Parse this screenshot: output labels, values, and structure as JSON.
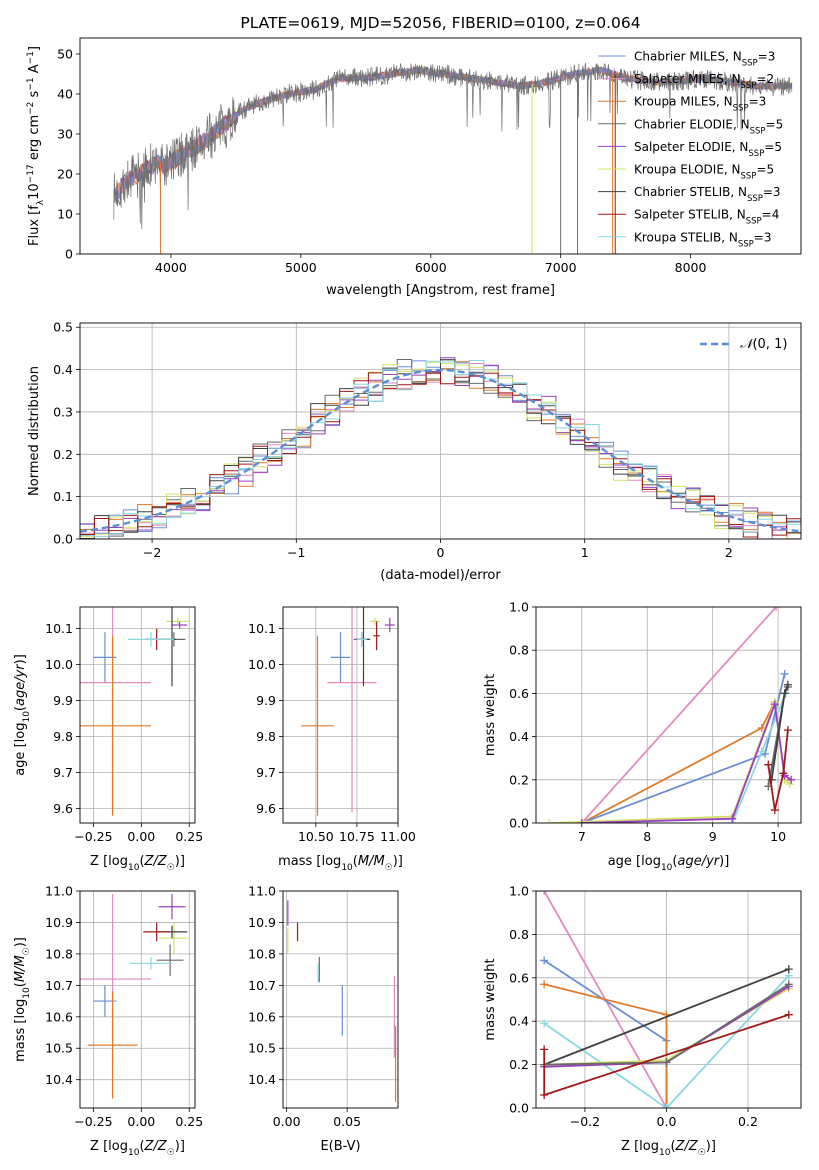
{
  "colors": {
    "chabrier_miles": "#6a8ed6",
    "salpeter_miles": "#e28bc0",
    "kroupa_miles": "#e07a2a",
    "chabrier_elodie": "#6a6a6a",
    "salpeter_elodie": "#9a3fc0",
    "kroupa_elodie": "#d2e06a",
    "chabrier_stelib": "#404040",
    "salpeter_stelib": "#a01818",
    "kroupa_stelib": "#88d8e0",
    "gaussian": "#5a8fd6",
    "grid": "#b0b0b0"
  },
  "chart_data": [
    {
      "id": "spectrum",
      "type": "line",
      "title": "PLATE=0619, MJD=52056, FIBERID=0100, z=0.064",
      "xlabel": "wavelength [Angstrom, rest frame]",
      "ylabel": "Flux [fλ10⁻¹⁷ erg cm⁻² s⁻¹ A⁻¹]",
      "xlim": [
        3300,
        8850
      ],
      "ylim": [
        0,
        54
      ],
      "xticks": [
        4000,
        5000,
        6000,
        7000,
        8000
      ],
      "yticks": [
        0,
        10,
        20,
        30,
        40,
        50
      ],
      "grid": false,
      "legend_position": "top-right",
      "legend": [
        {
          "label": "Chabrier MILES, N",
          "sub": "SSP",
          "suffix": "=3",
          "color_key": "chabrier_miles"
        },
        {
          "label": "Salpeter MILES, N",
          "sub": "SSP",
          "suffix": "=2",
          "color_key": "salpeter_miles"
        },
        {
          "label": "Kroupa MILES, N",
          "sub": "SSP",
          "suffix": "=3",
          "color_key": "kroupa_miles"
        },
        {
          "label": "Chabrier ELODIE, N",
          "sub": "SSP",
          "suffix": "=5",
          "color_key": "chabrier_elodie"
        },
        {
          "label": "Salpeter ELODIE, N",
          "sub": "SSP",
          "suffix": "=5",
          "color_key": "salpeter_elodie"
        },
        {
          "label": "Kroupa ELODIE, N",
          "sub": "SSP",
          "suffix": "=5",
          "color_key": "kroupa_elodie"
        },
        {
          "label": "Chabrier STELIB, N",
          "sub": "SSP",
          "suffix": "=3",
          "color_key": "chabrier_stelib"
        },
        {
          "label": "Salpeter STELIB, N",
          "sub": "SSP",
          "suffix": "=4",
          "color_key": "salpeter_stelib"
        },
        {
          "label": "Kroupa STELIB, N",
          "sub": "SSP",
          "suffix": "=3",
          "color_key": "kroupa_stelib"
        }
      ],
      "continuum": {
        "x": [
          3550,
          3650,
          3750,
          3900,
          3950,
          4050,
          4150,
          4250,
          4400,
          4550,
          4700,
          4900,
          5100,
          5300,
          5500,
          5700,
          5900,
          6100,
          6300,
          6500,
          6700,
          6900,
          7100,
          7300,
          7500,
          7700,
          7900,
          8100,
          8300,
          8500,
          8780
        ],
        "y": [
          14,
          18,
          20,
          23,
          22,
          24,
          26,
          28,
          32,
          36,
          38,
          40,
          41,
          44,
          44,
          45,
          46,
          45,
          44,
          43,
          42,
          43,
          45,
          46,
          44,
          43,
          43,
          44,
          43,
          42,
          42
        ]
      },
      "model_gaps": [
        {
          "x": 3920,
          "color_key": "kroupa_miles"
        },
        {
          "x": 6780,
          "color_key": "kroupa_elodie"
        },
        {
          "x": 7000,
          "color_key": "chabrier_elodie"
        },
        {
          "x": 7130,
          "color_key": "chabrier_elodie"
        },
        {
          "x": 7400,
          "color_key": "kroupa_miles"
        },
        {
          "x": 7420,
          "color_key": "salpeter_stelib"
        }
      ]
    },
    {
      "id": "residuals",
      "type": "area",
      "xlabel": "(data-model)/error",
      "ylabel": "Normed distribution",
      "xlim": [
        -2.5,
        2.5
      ],
      "ylim": [
        0,
        0.51
      ],
      "xticks": [
        -2,
        -1,
        0,
        1,
        2
      ],
      "yticks": [
        0.0,
        0.1,
        0.2,
        0.3,
        0.4,
        0.5
      ],
      "grid": true,
      "legend_position": "top-right",
      "legend_label": "N(0,1)",
      "bin_width": 0.1
    },
    {
      "id": "age_vs_Z",
      "type": "scatter",
      "xlabel": "Z [log10(Z/Z☉)]",
      "ylabel": "age  [log10(age/yr)]",
      "xlim": [
        -0.32,
        0.28
      ],
      "ylim": [
        9.56,
        10.16
      ],
      "xticks": [
        -0.25,
        0.0,
        0.25
      ],
      "yticks": [
        9.6,
        9.7,
        9.8,
        9.9,
        10.0,
        10.1
      ],
      "grid": true,
      "points": [
        {
          "x": -0.19,
          "y": 10.02,
          "xerr": 0.06,
          "yerr": 0.07,
          "color_key": "chabrier_miles"
        },
        {
          "x": -0.15,
          "y": 9.95,
          "xerr": 0.2,
          "yerr": 0.36,
          "color_key": "salpeter_miles"
        },
        {
          "x": -0.15,
          "y": 9.83,
          "xerr": 0.2,
          "yerr": 0.25,
          "color_key": "kroupa_miles"
        },
        {
          "x": 0.17,
          "y": 10.07,
          "xerr": 0.06,
          "yerr": 0.02,
          "color_key": "chabrier_elodie"
        },
        {
          "x": 0.2,
          "y": 10.11,
          "xerr": 0.04,
          "yerr": 0.01,
          "color_key": "salpeter_elodie"
        },
        {
          "x": 0.19,
          "y": 10.12,
          "xerr": 0.06,
          "yerr": 0.01,
          "color_key": "kroupa_elodie"
        },
        {
          "x": 0.16,
          "y": 10.07,
          "xerr": 0.02,
          "yerr": 0.13,
          "color_key": "chabrier_stelib"
        },
        {
          "x": 0.08,
          "y": 10.07,
          "xerr": 0.06,
          "yerr": 0.03,
          "color_key": "salpeter_stelib"
        },
        {
          "x": 0.05,
          "y": 10.07,
          "xerr": 0.12,
          "yerr": 0.02,
          "color_key": "kroupa_stelib"
        }
      ]
    },
    {
      "id": "age_vs_mass",
      "type": "scatter",
      "xlabel": "mass [log10(M/M☉)]",
      "ylabel": "",
      "xlim": [
        10.3,
        11.0
      ],
      "ylim": [
        9.56,
        10.16
      ],
      "xticks": [
        10.5,
        10.75,
        11.0
      ],
      "yticks": [
        9.6,
        9.7,
        9.8,
        9.9,
        10.0,
        10.1
      ],
      "grid": true,
      "points": [
        {
          "x": 10.65,
          "y": 10.02,
          "xerr": 0.06,
          "yerr": 0.07,
          "color_key": "chabrier_miles"
        },
        {
          "x": 10.72,
          "y": 9.95,
          "xerr": 0.15,
          "yerr": 0.36,
          "color_key": "salpeter_miles"
        },
        {
          "x": 10.51,
          "y": 9.83,
          "xerr": 0.1,
          "yerr": 0.25,
          "color_key": "kroupa_miles"
        },
        {
          "x": 10.78,
          "y": 10.07,
          "xerr": 0.05,
          "yerr": 0.02,
          "color_key": "chabrier_elodie"
        },
        {
          "x": 10.95,
          "y": 10.11,
          "xerr": 0.03,
          "yerr": 0.02,
          "color_key": "salpeter_elodie"
        },
        {
          "x": 10.86,
          "y": 10.12,
          "xerr": 0.03,
          "yerr": 0.01,
          "color_key": "kroupa_elodie"
        },
        {
          "x": 10.79,
          "y": 10.07,
          "xerr": 0.04,
          "yerr": 0.13,
          "color_key": "chabrier_stelib"
        },
        {
          "x": 10.87,
          "y": 10.08,
          "xerr": 0.02,
          "yerr": 0.04,
          "color_key": "salpeter_stelib"
        },
        {
          "x": 10.78,
          "y": 10.07,
          "xerr": 0.03,
          "yerr": 0.02,
          "color_key": "kroupa_stelib"
        }
      ]
    },
    {
      "id": "weight_vs_age",
      "type": "line",
      "xlabel": "age  [log10(age/yr)]",
      "ylabel": "mass weight",
      "xlim": [
        6.3,
        10.35
      ],
      "ylim": [
        0,
        1
      ],
      "xticks": [
        7,
        8,
        9,
        10
      ],
      "yticks": [
        0.0,
        0.2,
        0.4,
        0.6,
        0.8,
        1.0
      ],
      "grid": true,
      "series": [
        {
          "color_key": "salpeter_miles",
          "x": [
            7.0,
            9.97
          ],
          "y": [
            0.0,
            1.0
          ]
        },
        {
          "color_key": "kroupa_miles",
          "x": [
            7.0,
            9.75,
            9.95
          ],
          "y": [
            0.0,
            0.44,
            0.56
          ]
        },
        {
          "color_key": "chabrier_miles",
          "x": [
            7.0,
            9.8,
            10.1
          ],
          "y": [
            0.0,
            0.32,
            0.69
          ]
        },
        {
          "color_key": "kroupa_stelib",
          "x": [
            9.3,
            9.75,
            10.12
          ],
          "y": [
            0.0,
            0.33,
            0.6
          ]
        },
        {
          "color_key": "kroupa_elodie",
          "x": [
            6.5,
            9.3,
            9.95,
            10.1,
            10.18
          ],
          "y": [
            0.0,
            0.03,
            0.56,
            0.2,
            0.18
          ]
        },
        {
          "color_key": "salpeter_elodie",
          "x": [
            7.0,
            9.3,
            9.95,
            10.1,
            10.2
          ],
          "y": [
            0.0,
            0.02,
            0.55,
            0.22,
            0.2
          ]
        },
        {
          "color_key": "chabrier_elodie",
          "x": [
            9.85,
            10.1,
            10.15
          ],
          "y": [
            0.17,
            0.6,
            0.63
          ]
        },
        {
          "color_key": "chabrier_stelib",
          "x": [
            9.9,
            10.1,
            10.15
          ],
          "y": [
            0.2,
            0.6,
            0.64
          ]
        },
        {
          "color_key": "salpeter_stelib",
          "x": [
            9.85,
            9.95,
            10.08,
            10.15
          ],
          "y": [
            0.27,
            0.06,
            0.23,
            0.43
          ]
        }
      ]
    },
    {
      "id": "mass_vs_Z",
      "type": "scatter",
      "xlabel": "Z [log10(Z/Z☉)]",
      "ylabel": "mass [log10(M/M☉)]",
      "xlim": [
        -0.32,
        0.28
      ],
      "ylim": [
        10.31,
        11.0
      ],
      "xticks": [
        -0.25,
        0.0,
        0.25
      ],
      "yticks": [
        10.4,
        10.5,
        10.6,
        10.7,
        10.8,
        10.9,
        11.0
      ],
      "grid": true,
      "points": [
        {
          "x": -0.19,
          "y": 10.65,
          "xerr": 0.06,
          "yerr": 0.05,
          "color_key": "chabrier_miles"
        },
        {
          "x": -0.15,
          "y": 10.72,
          "xerr": 0.2,
          "yerr": 0.27,
          "color_key": "salpeter_miles"
        },
        {
          "x": -0.15,
          "y": 10.51,
          "xerr": 0.13,
          "yerr": 0.17,
          "color_key": "kroupa_miles"
        },
        {
          "x": 0.15,
          "y": 10.78,
          "xerr": 0.07,
          "yerr": 0.05,
          "color_key": "chabrier_elodie"
        },
        {
          "x": 0.16,
          "y": 10.95,
          "xerr": 0.07,
          "yerr": 0.04,
          "color_key": "salpeter_elodie"
        },
        {
          "x": 0.17,
          "y": 10.85,
          "xerr": 0.07,
          "yerr": 0.05,
          "color_key": "kroupa_elodie"
        },
        {
          "x": 0.16,
          "y": 10.87,
          "xerr": 0.08,
          "yerr": 0.02,
          "color_key": "chabrier_stelib"
        },
        {
          "x": 0.08,
          "y": 10.87,
          "xerr": 0.07,
          "yerr": 0.03,
          "color_key": "salpeter_stelib"
        },
        {
          "x": 0.05,
          "y": 10.77,
          "xerr": 0.11,
          "yerr": 0.02,
          "color_key": "kroupa_stelib"
        }
      ]
    },
    {
      "id": "mass_vs_ebv",
      "type": "scatter",
      "xlabel": "E(B-V)",
      "ylabel": "",
      "xlim": [
        -0.003,
        0.092
      ],
      "ylim": [
        10.31,
        11.0
      ],
      "xticks": [
        0.0,
        0.05
      ],
      "xticklabels": [
        "0.00",
        "0.05"
      ],
      "yticks": [
        10.4,
        10.5,
        10.6,
        10.7,
        10.8,
        10.9,
        11.0
      ],
      "grid": true,
      "points": [
        {
          "x": 0.001,
          "y": 10.93,
          "xerr": 0,
          "yerr": 0.04,
          "color_key": "salpeter_elodie"
        },
        {
          "x": 0.001,
          "y": 10.84,
          "xerr": 0,
          "yerr": 0.04,
          "color_key": "kroupa_elodie"
        },
        {
          "x": 0.009,
          "y": 10.87,
          "xerr": 0,
          "yerr": 0.03,
          "color_key": "salpeter_stelib"
        },
        {
          "x": 0.027,
          "y": 10.75,
          "xerr": 0,
          "yerr": 0.04,
          "color_key": "chabrier_elodie"
        },
        {
          "x": 0.026,
          "y": 10.74,
          "xerr": 0,
          "yerr": 0.03,
          "color_key": "kroupa_stelib"
        },
        {
          "x": 0.046,
          "y": 10.62,
          "xerr": 0,
          "yerr": 0.08,
          "color_key": "chabrier_miles"
        },
        {
          "x": 0.089,
          "y": 10.6,
          "xerr": 0,
          "yerr": 0.13,
          "color_key": "salpeter_miles"
        },
        {
          "x": 0.09,
          "y": 10.45,
          "xerr": 0,
          "yerr": 0.12,
          "color_key": "kroupa_miles"
        }
      ]
    },
    {
      "id": "weight_vs_Z",
      "type": "line",
      "xlabel": "Z [log10(Z/Z☉)]",
      "ylabel": "mass weight",
      "xlim": [
        -0.32,
        0.33
      ],
      "ylim": [
        0,
        1
      ],
      "xticks": [
        -0.2,
        0.0,
        0.2
      ],
      "yticks": [
        0.0,
        0.2,
        0.4,
        0.6,
        0.8,
        1.0
      ],
      "grid": true,
      "series": [
        {
          "color_key": "salpeter_miles",
          "x": [
            -0.3,
            0.0
          ],
          "y": [
            1.0,
            0.0
          ]
        },
        {
          "color_key": "chabrier_miles",
          "x": [
            -0.3,
            0.0,
            0.0
          ],
          "y": [
            0.68,
            0.31,
            0.0
          ]
        },
        {
          "color_key": "kroupa_miles",
          "x": [
            -0.3,
            0.0,
            0.0
          ],
          "y": [
            0.57,
            0.43,
            0.0
          ]
        },
        {
          "color_key": "kroupa_stelib",
          "x": [
            -0.3,
            0.0,
            0.3
          ],
          "y": [
            0.39,
            0.0,
            0.61
          ]
        },
        {
          "color_key": "chabrier_stelib",
          "x": [
            -0.3,
            0.3
          ],
          "y": [
            0.2,
            0.64
          ]
        },
        {
          "color_key": "kroupa_elodie",
          "x": [
            -0.3,
            0.0,
            0.3
          ],
          "y": [
            0.2,
            0.22,
            0.55
          ]
        },
        {
          "color_key": "salpeter_elodie",
          "x": [
            -0.3,
            0.0,
            0.3
          ],
          "y": [
            0.19,
            0.21,
            0.56
          ]
        },
        {
          "color_key": "chabrier_elodie",
          "x": [
            -0.3,
            0.0,
            0.3
          ],
          "y": [
            0.2,
            0.21,
            0.57
          ]
        },
        {
          "color_key": "salpeter_stelib",
          "x": [
            -0.3,
            -0.3,
            0.3
          ],
          "y": [
            0.27,
            0.06,
            0.43
          ]
        }
      ]
    }
  ]
}
